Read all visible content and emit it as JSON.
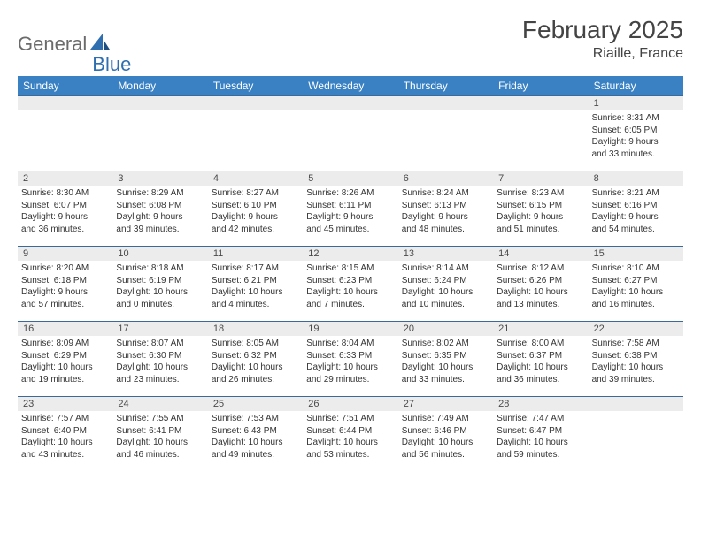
{
  "logo": {
    "part1": "General",
    "part2": "Blue"
  },
  "title": "February 2025",
  "location": "Riaille, France",
  "colors": {
    "header_bg": "#3a81c4",
    "header_text": "#ffffff",
    "row_border": "#3a6a9a",
    "daynum_bg": "#ececec",
    "text": "#333333",
    "logo_gray": "#6b6b6b",
    "logo_blue": "#2f6fb0"
  },
  "day_names": [
    "Sunday",
    "Monday",
    "Tuesday",
    "Wednesday",
    "Thursday",
    "Friday",
    "Saturday"
  ],
  "weeks": [
    [
      {
        "day": "",
        "lines": []
      },
      {
        "day": "",
        "lines": []
      },
      {
        "day": "",
        "lines": []
      },
      {
        "day": "",
        "lines": []
      },
      {
        "day": "",
        "lines": []
      },
      {
        "day": "",
        "lines": []
      },
      {
        "day": "1",
        "lines": [
          "Sunrise: 8:31 AM",
          "Sunset: 6:05 PM",
          "Daylight: 9 hours",
          "and 33 minutes."
        ]
      }
    ],
    [
      {
        "day": "2",
        "lines": [
          "Sunrise: 8:30 AM",
          "Sunset: 6:07 PM",
          "Daylight: 9 hours",
          "and 36 minutes."
        ]
      },
      {
        "day": "3",
        "lines": [
          "Sunrise: 8:29 AM",
          "Sunset: 6:08 PM",
          "Daylight: 9 hours",
          "and 39 minutes."
        ]
      },
      {
        "day": "4",
        "lines": [
          "Sunrise: 8:27 AM",
          "Sunset: 6:10 PM",
          "Daylight: 9 hours",
          "and 42 minutes."
        ]
      },
      {
        "day": "5",
        "lines": [
          "Sunrise: 8:26 AM",
          "Sunset: 6:11 PM",
          "Daylight: 9 hours",
          "and 45 minutes."
        ]
      },
      {
        "day": "6",
        "lines": [
          "Sunrise: 8:24 AM",
          "Sunset: 6:13 PM",
          "Daylight: 9 hours",
          "and 48 minutes."
        ]
      },
      {
        "day": "7",
        "lines": [
          "Sunrise: 8:23 AM",
          "Sunset: 6:15 PM",
          "Daylight: 9 hours",
          "and 51 minutes."
        ]
      },
      {
        "day": "8",
        "lines": [
          "Sunrise: 8:21 AM",
          "Sunset: 6:16 PM",
          "Daylight: 9 hours",
          "and 54 minutes."
        ]
      }
    ],
    [
      {
        "day": "9",
        "lines": [
          "Sunrise: 8:20 AM",
          "Sunset: 6:18 PM",
          "Daylight: 9 hours",
          "and 57 minutes."
        ]
      },
      {
        "day": "10",
        "lines": [
          "Sunrise: 8:18 AM",
          "Sunset: 6:19 PM",
          "Daylight: 10 hours",
          "and 0 minutes."
        ]
      },
      {
        "day": "11",
        "lines": [
          "Sunrise: 8:17 AM",
          "Sunset: 6:21 PM",
          "Daylight: 10 hours",
          "and 4 minutes."
        ]
      },
      {
        "day": "12",
        "lines": [
          "Sunrise: 8:15 AM",
          "Sunset: 6:23 PM",
          "Daylight: 10 hours",
          "and 7 minutes."
        ]
      },
      {
        "day": "13",
        "lines": [
          "Sunrise: 8:14 AM",
          "Sunset: 6:24 PM",
          "Daylight: 10 hours",
          "and 10 minutes."
        ]
      },
      {
        "day": "14",
        "lines": [
          "Sunrise: 8:12 AM",
          "Sunset: 6:26 PM",
          "Daylight: 10 hours",
          "and 13 minutes."
        ]
      },
      {
        "day": "15",
        "lines": [
          "Sunrise: 8:10 AM",
          "Sunset: 6:27 PM",
          "Daylight: 10 hours",
          "and 16 minutes."
        ]
      }
    ],
    [
      {
        "day": "16",
        "lines": [
          "Sunrise: 8:09 AM",
          "Sunset: 6:29 PM",
          "Daylight: 10 hours",
          "and 19 minutes."
        ]
      },
      {
        "day": "17",
        "lines": [
          "Sunrise: 8:07 AM",
          "Sunset: 6:30 PM",
          "Daylight: 10 hours",
          "and 23 minutes."
        ]
      },
      {
        "day": "18",
        "lines": [
          "Sunrise: 8:05 AM",
          "Sunset: 6:32 PM",
          "Daylight: 10 hours",
          "and 26 minutes."
        ]
      },
      {
        "day": "19",
        "lines": [
          "Sunrise: 8:04 AM",
          "Sunset: 6:33 PM",
          "Daylight: 10 hours",
          "and 29 minutes."
        ]
      },
      {
        "day": "20",
        "lines": [
          "Sunrise: 8:02 AM",
          "Sunset: 6:35 PM",
          "Daylight: 10 hours",
          "and 33 minutes."
        ]
      },
      {
        "day": "21",
        "lines": [
          "Sunrise: 8:00 AM",
          "Sunset: 6:37 PM",
          "Daylight: 10 hours",
          "and 36 minutes."
        ]
      },
      {
        "day": "22",
        "lines": [
          "Sunrise: 7:58 AM",
          "Sunset: 6:38 PM",
          "Daylight: 10 hours",
          "and 39 minutes."
        ]
      }
    ],
    [
      {
        "day": "23",
        "lines": [
          "Sunrise: 7:57 AM",
          "Sunset: 6:40 PM",
          "Daylight: 10 hours",
          "and 43 minutes."
        ]
      },
      {
        "day": "24",
        "lines": [
          "Sunrise: 7:55 AM",
          "Sunset: 6:41 PM",
          "Daylight: 10 hours",
          "and 46 minutes."
        ]
      },
      {
        "day": "25",
        "lines": [
          "Sunrise: 7:53 AM",
          "Sunset: 6:43 PM",
          "Daylight: 10 hours",
          "and 49 minutes."
        ]
      },
      {
        "day": "26",
        "lines": [
          "Sunrise: 7:51 AM",
          "Sunset: 6:44 PM",
          "Daylight: 10 hours",
          "and 53 minutes."
        ]
      },
      {
        "day": "27",
        "lines": [
          "Sunrise: 7:49 AM",
          "Sunset: 6:46 PM",
          "Daylight: 10 hours",
          "and 56 minutes."
        ]
      },
      {
        "day": "28",
        "lines": [
          "Sunrise: 7:47 AM",
          "Sunset: 6:47 PM",
          "Daylight: 10 hours",
          "and 59 minutes."
        ]
      },
      {
        "day": "",
        "lines": []
      }
    ]
  ]
}
